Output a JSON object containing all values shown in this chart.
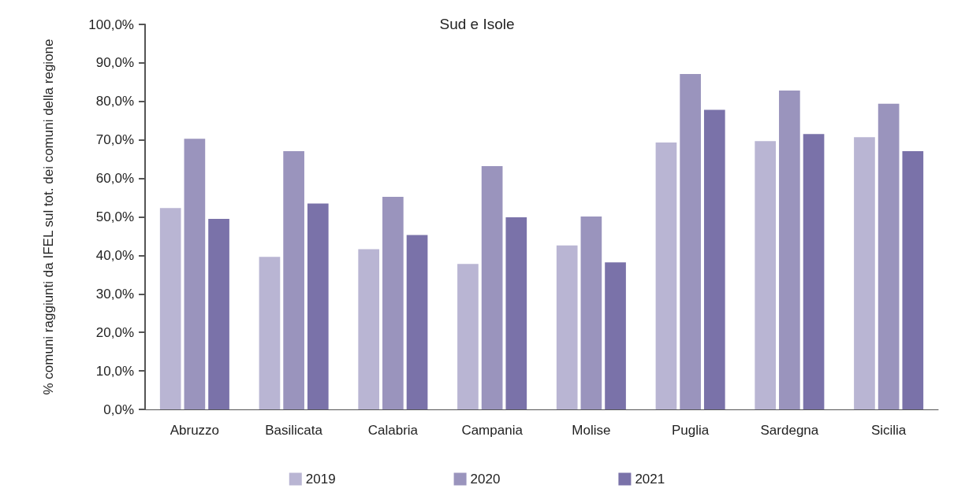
{
  "chart_data": {
    "type": "bar",
    "title": "Sud e Isole",
    "ylabel": "% comuni raggiunti da IFEL sul tot. dei comuni della regione",
    "categories": [
      "Abruzzo",
      "Basilicata",
      "Calabria",
      "Campania",
      "Molise",
      "Puglia",
      "Sardegna",
      "Sicilia"
    ],
    "series": [
      {
        "name": "2019",
        "color": "#b9b5d3",
        "values": [
          52.3,
          39.6,
          41.6,
          37.8,
          42.6,
          69.3,
          69.7,
          70.7
        ]
      },
      {
        "name": "2020",
        "color": "#9a94bd",
        "values": [
          70.3,
          67.1,
          55.2,
          63.2,
          50.1,
          87.1,
          82.8,
          79.4
        ]
      },
      {
        "name": "2021",
        "color": "#7a72a9",
        "values": [
          49.5,
          53.5,
          45.3,
          49.9,
          38.2,
          77.8,
          71.5,
          67.1
        ]
      }
    ],
    "ylim": [
      0,
      100
    ],
    "yticks": [
      {
        "value": 0,
        "label": "0,0%"
      },
      {
        "value": 10,
        "label": "10,0%"
      },
      {
        "value": 20,
        "label": "20,0%"
      },
      {
        "value": 30,
        "label": "30,0%"
      },
      {
        "value": 40,
        "label": "40,0%"
      },
      {
        "value": 50,
        "label": "50,0%"
      },
      {
        "value": 60,
        "label": "60,0%"
      },
      {
        "value": 70,
        "label": "70,0%"
      },
      {
        "value": 80,
        "label": "80,0%"
      },
      {
        "value": 90,
        "label": "90,0%"
      },
      {
        "value": 100,
        "label": "100,0%"
      }
    ],
    "grid": false,
    "legend": "bottom"
  }
}
